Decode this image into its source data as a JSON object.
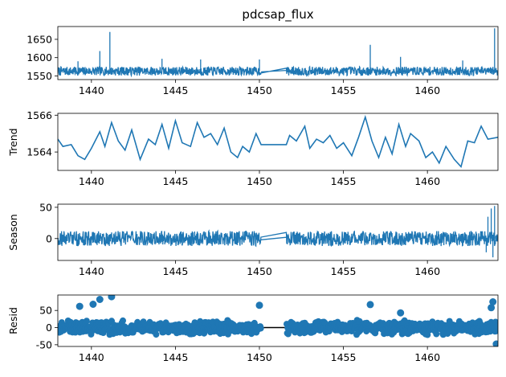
{
  "chart_data": {
    "type": "line",
    "title": "pdcsap_flux",
    "x_range": [
      1438,
      1464.2
    ],
    "x_ticks": [
      1440,
      1445,
      1450,
      1455,
      1460
    ],
    "gap": [
      1450.1,
      1451.6
    ],
    "colors": {
      "series": "#1f77b4",
      "axes": "#000000"
    },
    "panels": [
      {
        "name": "observed",
        "kind": "line",
        "ylabel": "",
        "ylim": [
          1540,
          1685
        ],
        "yticks": [
          1550,
          1600,
          1650
        ],
        "baseline": 1563,
        "noise_amplitude": 12,
        "spikes": [
          {
            "x": 1439.2,
            "y": 1590
          },
          {
            "x": 1440.5,
            "y": 1618
          },
          {
            "x": 1441.1,
            "y": 1670
          },
          {
            "x": 1444.2,
            "y": 1597
          },
          {
            "x": 1446.5,
            "y": 1595
          },
          {
            "x": 1450.0,
            "y": 1595
          },
          {
            "x": 1456.6,
            "y": 1635
          },
          {
            "x": 1458.4,
            "y": 1602
          },
          {
            "x": 1462.1,
            "y": 1592
          },
          {
            "x": 1464.0,
            "y": 1680
          }
        ]
      },
      {
        "name": "trend",
        "kind": "line",
        "ylabel": "Trend",
        "ylim": [
          1563.0,
          1566.1
        ],
        "yticks": [
          1564,
          1566
        ],
        "points": [
          [
            1438.0,
            1564.7
          ],
          [
            1438.3,
            1564.3
          ],
          [
            1438.8,
            1564.4
          ],
          [
            1439.2,
            1563.8
          ],
          [
            1439.6,
            1563.6
          ],
          [
            1440.0,
            1564.2
          ],
          [
            1440.5,
            1565.1
          ],
          [
            1440.8,
            1564.3
          ],
          [
            1441.2,
            1565.6
          ],
          [
            1441.6,
            1564.6
          ],
          [
            1442.0,
            1564.1
          ],
          [
            1442.4,
            1565.2
          ],
          [
            1442.9,
            1563.6
          ],
          [
            1443.4,
            1564.7
          ],
          [
            1443.8,
            1564.4
          ],
          [
            1444.2,
            1565.5
          ],
          [
            1444.6,
            1564.2
          ],
          [
            1445.0,
            1565.7
          ],
          [
            1445.4,
            1564.5
          ],
          [
            1445.9,
            1564.3
          ],
          [
            1446.3,
            1565.6
          ],
          [
            1446.7,
            1564.8
          ],
          [
            1447.1,
            1565.0
          ],
          [
            1447.5,
            1564.4
          ],
          [
            1447.9,
            1565.3
          ],
          [
            1448.3,
            1564.0
          ],
          [
            1448.7,
            1563.7
          ],
          [
            1449.0,
            1564.3
          ],
          [
            1449.4,
            1564.0
          ],
          [
            1449.8,
            1565.0
          ],
          [
            1450.1,
            1564.4
          ],
          [
            1451.6,
            1564.4
          ],
          [
            1451.8,
            1564.9
          ],
          [
            1452.2,
            1564.6
          ],
          [
            1452.7,
            1565.4
          ],
          [
            1453.0,
            1564.2
          ],
          [
            1453.4,
            1564.7
          ],
          [
            1453.8,
            1564.5
          ],
          [
            1454.2,
            1564.9
          ],
          [
            1454.6,
            1564.2
          ],
          [
            1455.0,
            1564.5
          ],
          [
            1455.5,
            1563.8
          ],
          [
            1455.9,
            1564.8
          ],
          [
            1456.3,
            1565.9
          ],
          [
            1456.7,
            1564.6
          ],
          [
            1457.1,
            1563.7
          ],
          [
            1457.5,
            1564.8
          ],
          [
            1457.9,
            1563.9
          ],
          [
            1458.3,
            1565.5
          ],
          [
            1458.7,
            1564.3
          ],
          [
            1459.0,
            1565.0
          ],
          [
            1459.5,
            1564.6
          ],
          [
            1459.9,
            1563.7
          ],
          [
            1460.3,
            1564.0
          ],
          [
            1460.7,
            1563.4
          ],
          [
            1461.1,
            1564.3
          ],
          [
            1461.6,
            1563.6
          ],
          [
            1462.0,
            1563.2
          ],
          [
            1462.4,
            1564.6
          ],
          [
            1462.8,
            1564.5
          ],
          [
            1463.2,
            1565.4
          ],
          [
            1463.6,
            1564.7
          ],
          [
            1464.2,
            1564.8
          ]
        ]
      },
      {
        "name": "season",
        "kind": "line",
        "ylabel": "Season",
        "ylim": [
          -35,
          55
        ],
        "yticks": [
          0,
          50
        ],
        "baseline": 0,
        "noise_amplitude": 12,
        "spikes": [
          {
            "x": 1463.6,
            "y": 35
          },
          {
            "x": 1463.8,
            "y": 48
          },
          {
            "x": 1464.0,
            "y": 52
          },
          {
            "x": 1463.5,
            "y": -22
          },
          {
            "x": 1463.9,
            "y": -30
          }
        ]
      },
      {
        "name": "resid",
        "kind": "scatter",
        "ylabel": "Resid",
        "ylim": [
          -55,
          95
        ],
        "yticks": [
          -50,
          0,
          50
        ],
        "baseline": 0,
        "noise_amplitude": 22,
        "outliers": [
          [
            1439.3,
            62
          ],
          [
            1440.1,
            68
          ],
          [
            1440.5,
            82
          ],
          [
            1441.2,
            90
          ],
          [
            1450.0,
            65
          ],
          [
            1456.6,
            67
          ],
          [
            1458.4,
            43
          ],
          [
            1463.9,
            75
          ],
          [
            1464.1,
            -48
          ],
          [
            1463.8,
            58
          ]
        ]
      }
    ]
  }
}
